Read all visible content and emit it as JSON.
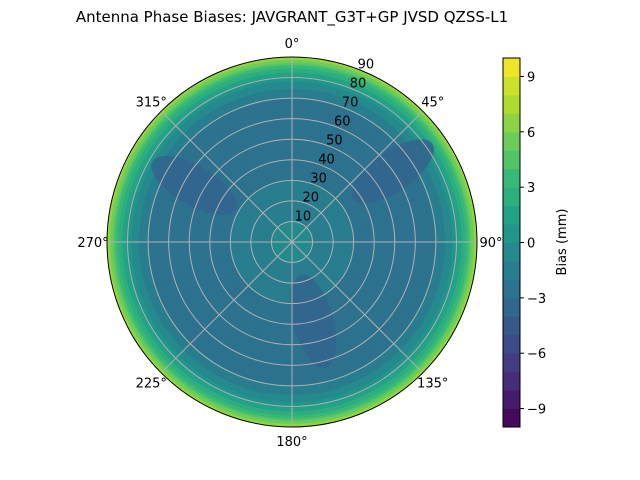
{
  "chart_data": {
    "type": "polar-contour",
    "title": "Antenna Phase Biases: JAVGRANT_G3T+GP JVSD QZSS-L1",
    "colormap": "viridis",
    "angular_ticks": [
      "0°",
      "45°",
      "90°",
      "135°",
      "180°",
      "225°",
      "270°",
      "315°"
    ],
    "angular_direction": "clockwise",
    "angular_zero": "top",
    "radial_ticks": [
      "10",
      "20",
      "30",
      "40",
      "50",
      "60",
      "70",
      "80",
      "90"
    ],
    "radial_range": [
      0,
      90
    ],
    "grid": true,
    "colorbar": {
      "label": "Bias (mm)",
      "range": [
        -10,
        10
      ],
      "level_step": 1,
      "ticks": [
        "9",
        "6",
        "3",
        "0",
        "−3",
        "−6",
        "−9"
      ],
      "tick_values": [
        9,
        6,
        3,
        0,
        -3,
        -6,
        -9
      ]
    },
    "radial_profile": {
      "zenith_deg": [
        0,
        10,
        20,
        30,
        40,
        50,
        60,
        70,
        75,
        80,
        85,
        90
      ],
      "bias_mm": [
        -0.5,
        -1,
        -1.5,
        -2,
        -2.5,
        -2.5,
        -2.5,
        -2,
        -1,
        0.5,
        3,
        7
      ]
    },
    "local_minima": [
      {
        "azimuth_deg": 300,
        "zenith_deg": 55,
        "bias_mm": -3.5
      },
      {
        "azimuth_deg": 165,
        "zenith_deg": 40,
        "bias_mm": -3.5
      },
      {
        "azimuth_deg": 55,
        "zenith_deg": 60,
        "bias_mm": -3.2
      }
    ]
  }
}
